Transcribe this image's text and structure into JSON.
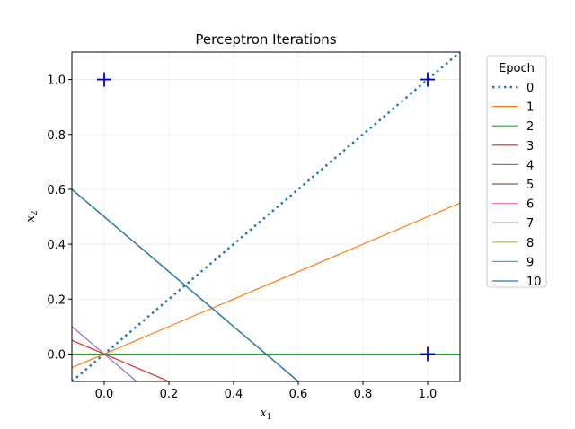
{
  "chart_data": {
    "type": "line",
    "title": "Perceptron Iterations",
    "xlabel": "x",
    "xlabel_sub": "1",
    "ylabel": "x",
    "ylabel_sub": "2",
    "xlim": [
      -0.1,
      1.1
    ],
    "ylim": [
      -0.1,
      1.1
    ],
    "xticks": [
      0.0,
      0.2,
      0.4,
      0.6,
      0.8,
      1.0
    ],
    "yticks": [
      0.0,
      0.2,
      0.4,
      0.6,
      0.8,
      1.0
    ],
    "xtick_labels": [
      "0.0",
      "0.2",
      "0.4",
      "0.6",
      "0.8",
      "1.0"
    ],
    "ytick_labels": [
      "0.0",
      "0.2",
      "0.4",
      "0.6",
      "0.8",
      "1.0"
    ],
    "grid": true,
    "legend": {
      "title": "Epoch",
      "placement": "outside-top-right"
    },
    "points": [
      {
        "x": 0.0,
        "y": 1.0,
        "marker": "+",
        "color": "#0000cc"
      },
      {
        "x": 1.0,
        "y": 1.0,
        "marker": "+",
        "color": "#0000cc"
      },
      {
        "x": 1.0,
        "y": 0.0,
        "marker": "+",
        "color": "#0000cc"
      }
    ],
    "series": [
      {
        "name": "0",
        "color": "#1f77b4",
        "dash": "dotted",
        "width": 2.5,
        "x": [
          -0.1,
          1.1
        ],
        "y": [
          -0.1,
          1.1
        ]
      },
      {
        "name": "1",
        "color": "#ff7f0e",
        "dash": "solid",
        "width": 1.2,
        "x": [
          -0.1,
          1.1
        ],
        "y": [
          -0.05,
          0.55
        ]
      },
      {
        "name": "2",
        "color": "#2ca02c",
        "dash": "solid",
        "width": 1.2,
        "x": [
          -0.1,
          1.1
        ],
        "y": [
          0.0,
          0.0
        ]
      },
      {
        "name": "3",
        "color": "#d62728",
        "dash": "solid",
        "width": 1.2,
        "x": [
          -0.1,
          0.2
        ],
        "y": [
          0.05,
          -0.1
        ]
      },
      {
        "name": "4",
        "color": "#9467bd",
        "dash": "solid",
        "width": 1.2,
        "x": [
          -0.1,
          0.1
        ],
        "y": [
          0.1,
          -0.1
        ]
      },
      {
        "name": "5",
        "color": "#8c564b",
        "dash": "solid",
        "width": 1.2,
        "x": [
          -0.1,
          0.6
        ],
        "y": [
          0.6,
          -0.1
        ]
      },
      {
        "name": "6",
        "color": "#e377c2",
        "dash": "solid",
        "width": 1.2,
        "x": [
          -0.1,
          0.6
        ],
        "y": [
          0.6,
          -0.1
        ]
      },
      {
        "name": "7",
        "color": "#7f7f7f",
        "dash": "solid",
        "width": 1.2,
        "x": [
          -0.1,
          0.6
        ],
        "y": [
          0.6,
          -0.1
        ]
      },
      {
        "name": "8",
        "color": "#bcbd22",
        "dash": "solid",
        "width": 1.2,
        "x": [
          -0.1,
          0.6
        ],
        "y": [
          0.6,
          -0.1
        ]
      },
      {
        "name": "9",
        "color": "#17becf",
        "dash": "solid",
        "width": 1.2,
        "x": [
          -0.1,
          0.6
        ],
        "y": [
          0.6,
          -0.1
        ]
      },
      {
        "name": "10",
        "color": "#1f77b4",
        "dash": "solid",
        "width": 1.2,
        "x": [
          -0.1,
          0.6
        ],
        "y": [
          0.6,
          -0.1
        ]
      }
    ]
  }
}
